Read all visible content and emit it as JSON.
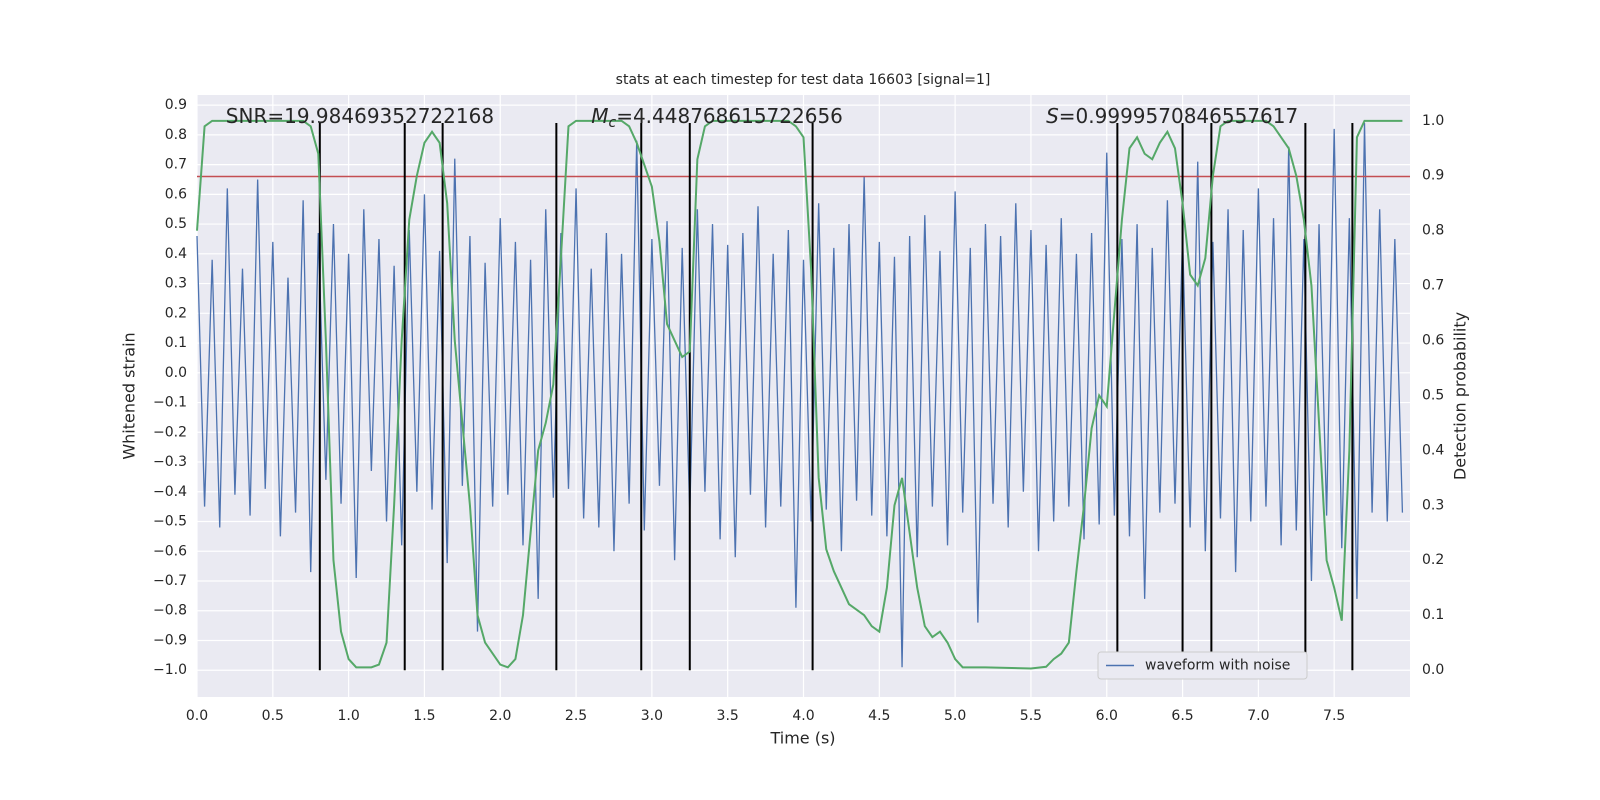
{
  "chart_data": {
    "type": "line",
    "title": "stats at each timestep for test data 16603 [signal=1]",
    "xlabel": "Time (s)",
    "ylabel": "Whitened strain",
    "y2label": "Detection probability",
    "xlim": [
      0,
      8.0
    ],
    "ylim": [
      -1.09,
      0.934
    ],
    "y2lim": [
      -0.049,
      1.047
    ],
    "xticks": [
      {
        "value": 0,
        "label": "0.0"
      },
      {
        "value": 0.5,
        "label": "0.5"
      },
      {
        "value": 1,
        "label": "1.0"
      },
      {
        "value": 1.5,
        "label": "1.5"
      },
      {
        "value": 2,
        "label": "2.0"
      },
      {
        "value": 2.5,
        "label": "2.5"
      },
      {
        "value": 3,
        "label": "3.0"
      },
      {
        "value": 3.5,
        "label": "3.5"
      },
      {
        "value": 4,
        "label": "4.0"
      },
      {
        "value": 4.5,
        "label": "4.5"
      },
      {
        "value": 5,
        "label": "5.0"
      },
      {
        "value": 5.5,
        "label": "5.5"
      },
      {
        "value": 6,
        "label": "6.0"
      },
      {
        "value": 6.5,
        "label": "6.5"
      },
      {
        "value": 7,
        "label": "7.0"
      },
      {
        "value": 7.5,
        "label": "7.5"
      }
    ],
    "yticks": [
      {
        "value": -1.0,
        "label": "−1.0"
      },
      {
        "value": -0.9,
        "label": "−0.9"
      },
      {
        "value": -0.8,
        "label": "−0.8"
      },
      {
        "value": -0.7,
        "label": "−0.7"
      },
      {
        "value": -0.6,
        "label": "−0.6"
      },
      {
        "value": -0.5,
        "label": "−0.5"
      },
      {
        "value": -0.4,
        "label": "−0.4"
      },
      {
        "value": -0.3,
        "label": "−0.3"
      },
      {
        "value": -0.2,
        "label": "−0.2"
      },
      {
        "value": -0.1,
        "label": "−0.1"
      },
      {
        "value": 0,
        "label": "0.0"
      },
      {
        "value": 0.1,
        "label": "0.1"
      },
      {
        "value": 0.2,
        "label": "0.2"
      },
      {
        "value": 0.3,
        "label": "0.3"
      },
      {
        "value": 0.4,
        "label": "0.4"
      },
      {
        "value": 0.5,
        "label": "0.5"
      },
      {
        "value": 0.6,
        "label": "0.6"
      },
      {
        "value": 0.7,
        "label": "0.7"
      },
      {
        "value": 0.8,
        "label": "0.8"
      },
      {
        "value": 0.9,
        "label": "0.9"
      }
    ],
    "y2ticks": [
      {
        "value": 0,
        "label": "0.0"
      },
      {
        "value": 0.1,
        "label": "0.1"
      },
      {
        "value": 0.2,
        "label": "0.2"
      },
      {
        "value": 0.3,
        "label": "0.3"
      },
      {
        "value": 0.4,
        "label": "0.4"
      },
      {
        "value": 0.5,
        "label": "0.5"
      },
      {
        "value": 0.6,
        "label": "0.6"
      },
      {
        "value": 0.7,
        "label": "0.7"
      },
      {
        "value": 0.8,
        "label": "0.8"
      },
      {
        "value": 0.9,
        "label": "0.9"
      },
      {
        "value": 1,
        "label": "1.0"
      }
    ],
    "grid": true,
    "legend": "lower right",
    "series": [
      {
        "name": "waveform with noise",
        "color": "#4c72b0",
        "x": [
          0,
          0.05,
          0.1,
          0.15,
          0.2,
          0.25,
          0.3,
          0.35,
          0.4,
          0.45,
          0.5,
          0.55,
          0.6,
          0.65,
          0.7,
          0.75,
          0.8,
          0.85,
          0.9,
          0.95,
          1,
          1.05,
          1.1,
          1.15,
          1.2,
          1.25,
          1.3,
          1.35,
          1.4,
          1.45,
          1.5,
          1.55,
          1.6,
          1.65,
          1.7,
          1.75,
          1.8,
          1.85,
          1.9,
          1.95,
          2,
          2.05,
          2.1,
          2.15,
          2.2,
          2.25,
          2.3,
          2.35,
          2.4,
          2.45,
          2.5,
          2.55,
          2.6,
          2.65,
          2.7,
          2.75,
          2.8,
          2.85,
          2.9,
          2.95,
          3,
          3.05,
          3.1,
          3.15,
          3.2,
          3.25,
          3.3,
          3.35,
          3.4,
          3.45,
          3.5,
          3.55,
          3.6,
          3.65,
          3.7,
          3.75,
          3.8,
          3.85,
          3.9,
          3.95,
          4,
          4.05,
          4.1,
          4.15,
          4.2,
          4.25,
          4.3,
          4.35,
          4.4,
          4.45,
          4.5,
          4.55,
          4.6,
          4.65,
          4.7,
          4.75,
          4.8,
          4.85,
          4.9,
          4.95,
          5,
          5.05,
          5.1,
          5.15,
          5.2,
          5.25,
          5.3,
          5.35,
          5.4,
          5.45,
          5.5,
          5.55,
          5.6,
          5.65,
          5.7,
          5.75,
          5.8,
          5.85,
          5.9,
          5.95,
          6,
          6.05,
          6.1,
          6.15,
          6.2,
          6.25,
          6.3,
          6.35,
          6.4,
          6.45,
          6.5,
          6.55,
          6.6,
          6.65,
          6.7,
          6.75,
          6.8,
          6.85,
          6.9,
          6.95,
          7,
          7.05,
          7.1,
          7.15,
          7.2,
          7.25,
          7.3,
          7.35,
          7.4,
          7.45,
          7.5,
          7.55,
          7.6,
          7.65,
          7.7,
          7.75,
          7.8,
          7.85,
          7.9,
          7.95
        ],
        "values": [
          0.46,
          -0.45,
          0.38,
          -0.52,
          0.62,
          -0.41,
          0.35,
          -0.48,
          0.65,
          -0.39,
          0.44,
          -0.55,
          0.32,
          -0.47,
          0.58,
          -0.67,
          0.47,
          -0.36,
          0.5,
          -0.44,
          0.4,
          -0.69,
          0.55,
          -0.33,
          0.45,
          -0.5,
          0.36,
          -0.58,
          0.48,
          -0.4,
          0.6,
          -0.46,
          0.41,
          -0.64,
          0.72,
          -0.38,
          0.46,
          -0.87,
          0.37,
          -0.45,
          0.52,
          -0.41,
          0.44,
          -0.58,
          0.38,
          -0.76,
          0.55,
          -0.42,
          0.47,
          -0.39,
          0.62,
          -0.49,
          0.35,
          -0.52,
          0.47,
          -0.6,
          0.4,
          -0.44,
          0.78,
          -0.53,
          0.45,
          -0.38,
          0.51,
          -0.63,
          0.42,
          -0.47,
          0.55,
          -0.4,
          0.5,
          -0.56,
          0.43,
          -0.62,
          0.47,
          -0.41,
          0.56,
          -0.52,
          0.4,
          -0.45,
          0.48,
          -0.79,
          0.38,
          -0.5,
          0.57,
          -0.46,
          0.42,
          -0.6,
          0.5,
          -0.43,
          0.66,
          -0.48,
          0.44,
          -0.55,
          0.39,
          -0.99,
          0.46,
          -0.62,
          0.53,
          -0.45,
          0.41,
          -0.58,
          0.61,
          -0.47,
          0.42,
          -0.84,
          0.5,
          -0.44,
          0.46,
          -0.52,
          0.57,
          -0.4,
          0.48,
          -0.6,
          0.43,
          -0.5,
          0.52,
          -0.45,
          0.4,
          -0.56,
          0.47,
          -0.51,
          0.74,
          -0.48,
          0.45,
          -0.55,
          0.5,
          -0.76,
          0.42,
          -0.47,
          0.58,
          -0.44,
          0.46,
          -0.52,
          0.71,
          -0.6,
          0.44,
          -0.49,
          0.55,
          -0.67,
          0.48,
          -0.5,
          0.62,
          -0.45,
          0.52,
          -0.58,
          0.76,
          -0.53,
          0.45,
          -0.7,
          0.5,
          -0.48,
          0.82,
          -0.59,
          0.52,
          -0.76,
          0.84,
          -0.47,
          0.55,
          -0.5,
          0.45,
          -0.47
        ]
      },
      {
        "color": "#55a868",
        "axis": "y2",
        "x": [
          0,
          0.05,
          0.1,
          0.7,
          0.75,
          0.8,
          0.85,
          0.9,
          0.95,
          1.0,
          1.05,
          1.15,
          1.2,
          1.25,
          1.3,
          1.35,
          1.4,
          1.45,
          1.5,
          1.55,
          1.6,
          1.65,
          1.7,
          1.8,
          1.85,
          1.9,
          2.0,
          2.05,
          2.1,
          2.15,
          2.2,
          2.25,
          2.3,
          2.35,
          2.4,
          2.45,
          2.5,
          2.8,
          2.85,
          2.9,
          3.0,
          3.05,
          3.1,
          3.15,
          3.2,
          3.25,
          3.3,
          3.35,
          3.4,
          3.9,
          3.95,
          4.0,
          4.05,
          4.1,
          4.15,
          4.2,
          4.25,
          4.3,
          4.35,
          4.4,
          4.45,
          4.5,
          4.55,
          4.6,
          4.65,
          4.7,
          4.75,
          4.8,
          4.85,
          4.9,
          4.95,
          5.0,
          5.05,
          5.2,
          5.5,
          5.6,
          5.65,
          5.7,
          5.75,
          5.8,
          5.85,
          5.9,
          5.95,
          6.0,
          6.05,
          6.1,
          6.15,
          6.2,
          6.25,
          6.3,
          6.35,
          6.4,
          6.45,
          6.5,
          6.55,
          6.6,
          6.65,
          6.7,
          6.75,
          6.8,
          7.05,
          7.1,
          7.15,
          7.2,
          7.25,
          7.3,
          7.35,
          7.4,
          7.45,
          7.5,
          7.55,
          7.6,
          7.65,
          7.7,
          7.95
        ],
        "values": [
          0.8,
          0.99,
          1.0,
          1.0,
          0.99,
          0.94,
          0.6,
          0.2,
          0.07,
          0.02,
          0.005,
          0.005,
          0.01,
          0.05,
          0.3,
          0.6,
          0.82,
          0.9,
          0.96,
          0.98,
          0.96,
          0.85,
          0.6,
          0.3,
          0.1,
          0.05,
          0.01,
          0.005,
          0.02,
          0.1,
          0.25,
          0.4,
          0.45,
          0.52,
          0.75,
          0.99,
          1.0,
          1.0,
          0.99,
          0.96,
          0.88,
          0.78,
          0.63,
          0.6,
          0.57,
          0.58,
          0.93,
          0.99,
          1.0,
          1.0,
          0.99,
          0.97,
          0.73,
          0.35,
          0.22,
          0.18,
          0.15,
          0.12,
          0.11,
          0.1,
          0.08,
          0.07,
          0.15,
          0.3,
          0.35,
          0.25,
          0.15,
          0.08,
          0.06,
          0.07,
          0.05,
          0.02,
          0.005,
          0.005,
          0.003,
          0.006,
          0.02,
          0.03,
          0.05,
          0.18,
          0.3,
          0.44,
          0.5,
          0.48,
          0.65,
          0.82,
          0.95,
          0.97,
          0.94,
          0.93,
          0.96,
          0.98,
          0.95,
          0.85,
          0.72,
          0.7,
          0.75,
          0.9,
          0.99,
          1.0,
          1.0,
          0.99,
          0.97,
          0.95,
          0.9,
          0.82,
          0.7,
          0.45,
          0.2,
          0.15,
          0.09,
          0.4,
          0.97,
          1.0,
          1.0
        ]
      }
    ],
    "hline": {
      "y": 0.66,
      "color": "#c44e52"
    },
    "vlines": {
      "x": [
        0.81,
        1.37,
        1.62,
        2.37,
        2.93,
        3.25,
        4.06,
        6.07,
        6.5,
        6.69,
        7.31,
        7.62
      ],
      "ymin": -1.0,
      "ymax": 0.84,
      "color": "#000000"
    },
    "annotations": [
      {
        "text": "SNR=19.98469352722168",
        "x": 0.19
      },
      {
        "italic": "M",
        "sub": "c",
        "text": "=4.448768615722656",
        "x": 2.6
      },
      {
        "italic": "S",
        "text": "=0.9999570846557617",
        "x": 5.6
      }
    ],
    "annotation_y": 0.86
  }
}
